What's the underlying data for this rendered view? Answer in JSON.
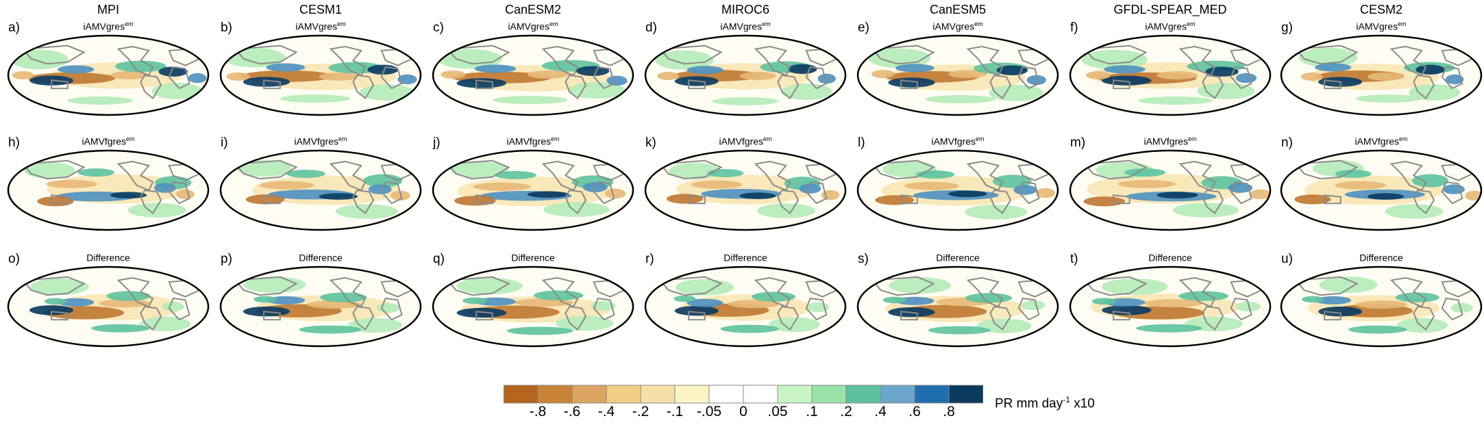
{
  "models": [
    "MPI",
    "CESM1",
    "CanESM2",
    "MIROC6",
    "CanESM5",
    "GFDL-SPEAR_MED",
    "CESM2"
  ],
  "row_titles": [
    {
      "base": "iAMVgres",
      "sup": "em"
    },
    {
      "base": "iAMVfgres",
      "sup": "em"
    },
    {
      "base": "Difference",
      "sup": ""
    }
  ],
  "panel_labels": [
    [
      "a)",
      "b)",
      "c)",
      "d)",
      "e)",
      "f)",
      "g)"
    ],
    [
      "h)",
      "i)",
      "j)",
      "k)",
      "l)",
      "m)",
      "n)"
    ],
    [
      "o)",
      "p)",
      "q)",
      "r)",
      "s)",
      "t)",
      "u)"
    ]
  ],
  "colorbar": {
    "colors": [
      "#b5651d",
      "#c98438",
      "#dba562",
      "#f2cd84",
      "#f7e0a6",
      "#fdf4c6",
      "#ffffff",
      "#ffffff",
      "#c9f5c4",
      "#98e4a8",
      "#5cc0a0",
      "#6aa6c9",
      "#1f6fae",
      "#0b3a5f"
    ],
    "ticks": [
      "-.8",
      "-.6",
      "-.4",
      "-.2",
      "-.1",
      "-.05",
      "0",
      ".05",
      ".1",
      ".2",
      ".4",
      ".6",
      ".8"
    ],
    "unit": {
      "base": "PR mm day",
      "sup": "-1",
      "tail": " x10"
    }
  },
  "map_colors": {
    "brown": "#c07a35",
    "tan": "#e6b877",
    "pale": "#f8e6b4",
    "lightgreen": "#b6ecbb",
    "green": "#5fc39f",
    "blue": "#4f91c0",
    "darkblue": "#0c3d63",
    "land": "#8a8a8a"
  }
}
